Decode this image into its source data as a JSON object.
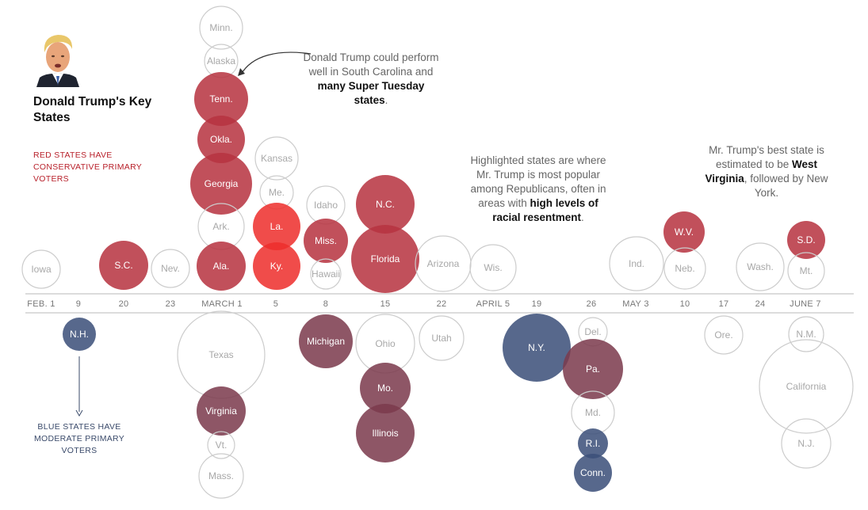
{
  "title": "Donald Trump's Key States",
  "red_note": "RED STATES HAVE CONSERVATIVE PRIMARY VOTERS",
  "blue_note": "BLUE STATES HAVE MODERATE PRIMARY VOTERS",
  "annotations": {
    "super_tuesday": {
      "pre": "Donald Trump could perform well in South Carolina and ",
      "bold": "many Super Tuesday states",
      "post": "."
    },
    "highlighted": {
      "pre": "Highlighted states are where Mr. Trump is most popular among Republicans, often in areas with ",
      "bold": "high levels of racial resentment",
      "post": "."
    },
    "best_state": {
      "pre": "Mr. Trump's best state is estimated to be ",
      "bold": "West Virginia",
      "post": ", followed by New York."
    }
  },
  "colors": {
    "red": "#b73340",
    "bright_red": "#ee2f2c",
    "maroon": "#7b3a4d",
    "navy": "#3b4f79",
    "gray_outline": "#cccccc",
    "axis": "#c8c8c8",
    "date_text": "#777777"
  },
  "chart_data": {
    "type": "bubble-timeline",
    "dates": [
      "FEB. 1",
      "9",
      "20",
      "23",
      "MARCH 1",
      "5",
      "8",
      "15",
      "22",
      "APRIL 5",
      "19",
      "26",
      "MAY 3",
      "10",
      "17",
      "24",
      "JUNE 7"
    ],
    "states": [
      {
        "label": "Iowa",
        "date": "FEB. 1",
        "side": "above",
        "size": "small",
        "shade": "none"
      },
      {
        "label": "N.H.",
        "date": "9",
        "side": "below",
        "size": "small",
        "shade": "navy"
      },
      {
        "label": "S.C.",
        "date": "20",
        "side": "above",
        "size": "medium",
        "shade": "red"
      },
      {
        "label": "Nev.",
        "date": "23",
        "side": "above",
        "size": "small",
        "shade": "none"
      },
      {
        "label": "Minn.",
        "date": "MARCH 1",
        "side": "above",
        "size": "medium",
        "shade": "none"
      },
      {
        "label": "Alaska",
        "date": "MARCH 1",
        "side": "above",
        "size": "small",
        "shade": "none"
      },
      {
        "label": "Tenn.",
        "date": "MARCH 1",
        "side": "above",
        "size": "medium",
        "shade": "red"
      },
      {
        "label": "Okla.",
        "date": "MARCH 1",
        "side": "above",
        "size": "medium",
        "shade": "red"
      },
      {
        "label": "Georgia",
        "date": "MARCH 1",
        "side": "above",
        "size": "large",
        "shade": "red"
      },
      {
        "label": "Ark.",
        "date": "MARCH 1",
        "side": "above",
        "size": "medium",
        "shade": "none"
      },
      {
        "label": "Ala.",
        "date": "MARCH 1",
        "side": "above",
        "size": "medium",
        "shade": "red"
      },
      {
        "label": "Texas",
        "date": "MARCH 1",
        "side": "below",
        "size": "xlarge",
        "shade": "none"
      },
      {
        "label": "Virginia",
        "date": "MARCH 1",
        "side": "below",
        "size": "medium",
        "shade": "maroon"
      },
      {
        "label": "Vt.",
        "date": "MARCH 1",
        "side": "below",
        "size": "small",
        "shade": "none"
      },
      {
        "label": "Mass.",
        "date": "MARCH 1",
        "side": "below",
        "size": "medium",
        "shade": "none"
      },
      {
        "label": "Kansas",
        "date": "5",
        "side": "above",
        "size": "medium",
        "shade": "none"
      },
      {
        "label": "Me.",
        "date": "5",
        "side": "above",
        "size": "small",
        "shade": "none"
      },
      {
        "label": "La.",
        "date": "5",
        "side": "above",
        "size": "medium",
        "shade": "bright_red"
      },
      {
        "label": "Ky.",
        "date": "5",
        "side": "above",
        "size": "medium",
        "shade": "bright_red"
      },
      {
        "label": "Idaho",
        "date": "8",
        "side": "above",
        "size": "small",
        "shade": "none"
      },
      {
        "label": "Miss.",
        "date": "8",
        "side": "above",
        "size": "medium",
        "shade": "red"
      },
      {
        "label": "Hawaii",
        "date": "8",
        "side": "above",
        "size": "small",
        "shade": "none"
      },
      {
        "label": "Michigan",
        "date": "8",
        "side": "below",
        "size": "large",
        "shade": "maroon"
      },
      {
        "label": "N.C.",
        "date": "15",
        "side": "above",
        "size": "large",
        "shade": "red"
      },
      {
        "label": "Florida",
        "date": "15",
        "side": "above",
        "size": "xlarge",
        "shade": "red"
      },
      {
        "label": "Ohio",
        "date": "15",
        "side": "below",
        "size": "large",
        "shade": "none"
      },
      {
        "label": "Mo.",
        "date": "15",
        "side": "below",
        "size": "medium",
        "shade": "maroon"
      },
      {
        "label": "Illinois",
        "date": "15",
        "side": "below",
        "size": "large",
        "shade": "maroon"
      },
      {
        "label": "Arizona",
        "date": "22",
        "side": "above",
        "size": "large",
        "shade": "none"
      },
      {
        "label": "Utah",
        "date": "22",
        "side": "below",
        "size": "medium",
        "shade": "none"
      },
      {
        "label": "Wis.",
        "date": "APRIL 5",
        "side": "above",
        "size": "medium",
        "shade": "none"
      },
      {
        "label": "N.Y.",
        "date": "19",
        "side": "below",
        "size": "xlarge",
        "shade": "navy"
      },
      {
        "label": "Del.",
        "date": "26",
        "side": "below",
        "size": "small",
        "shade": "none"
      },
      {
        "label": "Pa.",
        "date": "26",
        "side": "below",
        "size": "large",
        "shade": "maroon"
      },
      {
        "label": "Md.",
        "date": "26",
        "side": "below",
        "size": "medium",
        "shade": "none"
      },
      {
        "label": "R.I.",
        "date": "26",
        "side": "below",
        "size": "small",
        "shade": "navy"
      },
      {
        "label": "Conn.",
        "date": "26",
        "side": "below",
        "size": "medium",
        "shade": "navy"
      },
      {
        "label": "Ind.",
        "date": "MAY 3",
        "side": "above",
        "size": "large",
        "shade": "none"
      },
      {
        "label": "W.V.",
        "date": "10",
        "side": "above",
        "size": "medium",
        "shade": "red"
      },
      {
        "label": "Neb.",
        "date": "10",
        "side": "above",
        "size": "medium",
        "shade": "none"
      },
      {
        "label": "Ore.",
        "date": "17",
        "side": "below",
        "size": "medium",
        "shade": "none"
      },
      {
        "label": "Wash.",
        "date": "24",
        "side": "above",
        "size": "medium",
        "shade": "none"
      },
      {
        "label": "S.D.",
        "date": "JUNE 7",
        "side": "above",
        "size": "medium",
        "shade": "red"
      },
      {
        "label": "Mt.",
        "date": "JUNE 7",
        "side": "above",
        "size": "medium",
        "shade": "none"
      },
      {
        "label": "N.M.",
        "date": "JUNE 7",
        "side": "below",
        "size": "small",
        "shade": "none"
      },
      {
        "label": "California",
        "date": "JUNE 7",
        "side": "below",
        "size": "xxlarge",
        "shade": "none"
      },
      {
        "label": "N.J.",
        "date": "JUNE 7",
        "side": "below",
        "size": "large",
        "shade": "none"
      }
    ]
  }
}
